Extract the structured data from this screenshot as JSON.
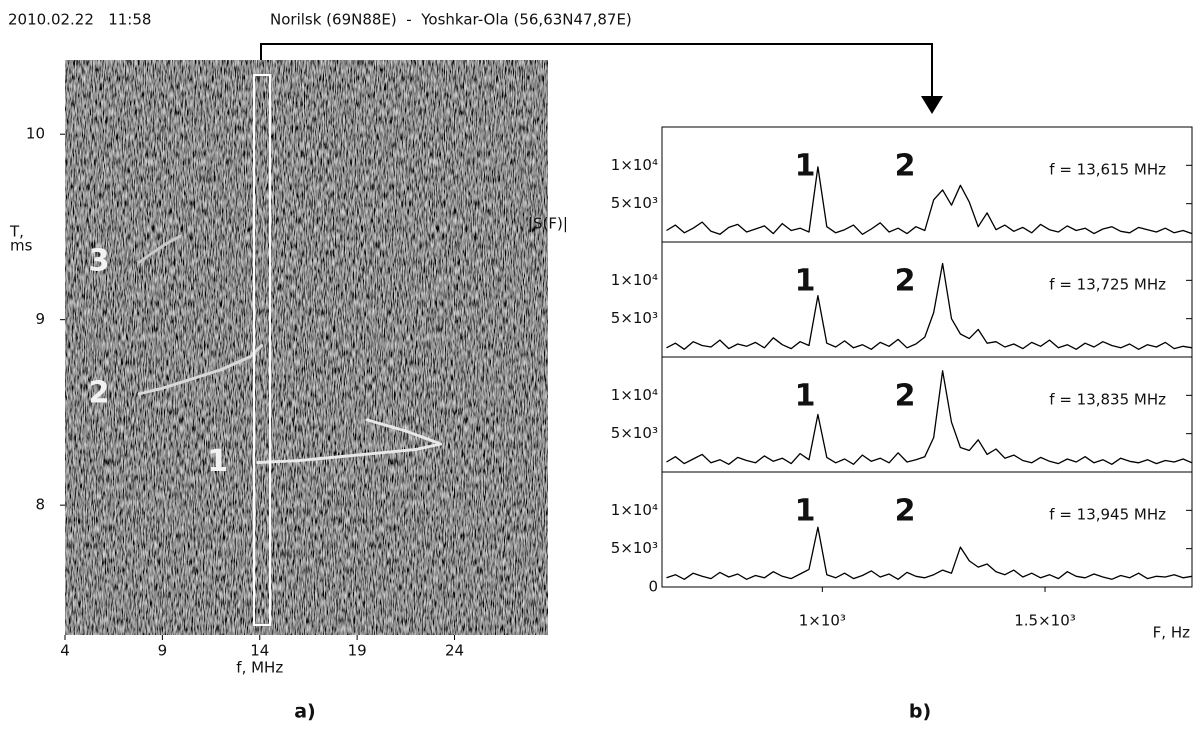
{
  "header": {
    "date": "2010.02.22   11:58",
    "path": "Norilsk (69N88E)  -  Yoshkar-Ola (56,63N47,87E)"
  },
  "captions": [
    "a)",
    "b)"
  ],
  "chart_data": [
    {
      "type": "ionogram",
      "xlabel": "f, MHz",
      "ylabel": [
        "T,",
        "ms"
      ],
      "xlim": [
        4,
        28.8
      ],
      "ylim": [
        7.3,
        10.4
      ],
      "xticks": [
        4,
        9,
        14,
        19,
        24
      ],
      "yticks": [
        8,
        9,
        10
      ],
      "series": [
        {
          "name": "1",
          "color": "#e8e8e8",
          "x": [
            13.9,
            16,
            18,
            20,
            22,
            23.3,
            21.5,
            19.5
          ],
          "values": [
            8.23,
            8.24,
            8.26,
            8.28,
            8.3,
            8.33,
            8.4,
            8.46
          ]
        },
        {
          "name": "2",
          "color": "#d8d8d8",
          "x": [
            7.8,
            9,
            10.5,
            12,
            13.5,
            14.1
          ],
          "values": [
            8.6,
            8.63,
            8.68,
            8.73,
            8.8,
            8.86
          ]
        },
        {
          "name": "3",
          "color": "#c8c8c8",
          "x": [
            7.8,
            8.5,
            9.2,
            9.9
          ],
          "values": [
            9.31,
            9.36,
            9.41,
            9.45
          ]
        }
      ]
    },
    {
      "type": "line",
      "ylabel": "|S(F)|",
      "labels": [
        "1",
        "2"
      ],
      "note": "f = 13,615 MHz",
      "xlim": [
        640,
        1830
      ],
      "ylim": [
        0,
        15000
      ],
      "yticks": [
        {
          "value": 5000,
          "label": "5×10³"
        },
        {
          "value": 10000,
          "label": "1×10⁴"
        }
      ],
      "x": [
        650,
        670,
        690,
        710,
        730,
        750,
        770,
        790,
        810,
        830,
        850,
        870,
        890,
        910,
        930,
        950,
        970,
        990,
        1010,
        1030,
        1050,
        1070,
        1090,
        1110,
        1130,
        1150,
        1170,
        1190,
        1210,
        1230,
        1250,
        1270,
        1290,
        1310,
        1330,
        1350,
        1370,
        1390,
        1410,
        1430,
        1450,
        1470,
        1490,
        1510,
        1530,
        1550,
        1570,
        1590,
        1610,
        1630,
        1650,
        1670,
        1690,
        1710,
        1730,
        1750,
        1770,
        1790,
        1810,
        1830
      ],
      "values": [
        1500,
        2200,
        1200,
        1800,
        2600,
        1400,
        1000,
        1900,
        2300,
        1300,
        1700,
        2100,
        1100,
        2400,
        1500,
        1800,
        1300,
        9800,
        2000,
        1200,
        1600,
        2200,
        1000,
        1700,
        2500,
        1300,
        1800,
        1100,
        2000,
        1500,
        5500,
        6800,
        4800,
        7400,
        5200,
        2000,
        3800,
        1600,
        2200,
        1400,
        1900,
        1200,
        2300,
        1600,
        1300,
        2100,
        1500,
        1800,
        1100,
        1700,
        2000,
        1400,
        1200,
        1900,
        1600,
        1300,
        1800,
        1200,
        1500,
        1100
      ]
    },
    {
      "type": "line",
      "labels": [
        "1",
        "2"
      ],
      "note": "f = 13,725 MHz",
      "xlim": [
        640,
        1830
      ],
      "ylim": [
        0,
        15000
      ],
      "yticks": [
        {
          "value": 5000,
          "label": "5×10³"
        },
        {
          "value": 10000,
          "label": "1×10⁴"
        }
      ],
      "x": [
        650,
        670,
        690,
        710,
        730,
        750,
        770,
        790,
        810,
        830,
        850,
        870,
        890,
        910,
        930,
        950,
        970,
        990,
        1010,
        1030,
        1050,
        1070,
        1090,
        1110,
        1130,
        1150,
        1170,
        1190,
        1210,
        1230,
        1250,
        1270,
        1290,
        1310,
        1330,
        1350,
        1370,
        1390,
        1410,
        1430,
        1450,
        1470,
        1490,
        1510,
        1530,
        1550,
        1570,
        1590,
        1610,
        1630,
        1650,
        1670,
        1690,
        1710,
        1730,
        1750,
        1770,
        1790,
        1810,
        1830
      ],
      "values": [
        1200,
        1800,
        1000,
        2000,
        1500,
        1300,
        2200,
        1100,
        1700,
        1400,
        1900,
        1200,
        2500,
        1600,
        1100,
        2000,
        1500,
        8000,
        1800,
        1300,
        2100,
        1200,
        1600,
        1000,
        1900,
        1400,
        2300,
        1200,
        1700,
        2600,
        5800,
        12200,
        5000,
        3000,
        2400,
        3600,
        1800,
        2000,
        1300,
        1700,
        1100,
        1900,
        1400,
        2200,
        1200,
        1600,
        1000,
        1800,
        1300,
        2000,
        1500,
        1200,
        1700,
        1000,
        1600,
        1300,
        1900,
        1100,
        1400,
        1200
      ]
    },
    {
      "type": "line",
      "labels": [
        "1",
        "2"
      ],
      "note": "f = 13,835 MHz",
      "xlim": [
        640,
        1830
      ],
      "ylim": [
        0,
        15000
      ],
      "yticks": [
        {
          "value": 5000,
          "label": "5×10³"
        },
        {
          "value": 10000,
          "label": "1×10⁴"
        }
      ],
      "x": [
        650,
        670,
        690,
        710,
        730,
        750,
        770,
        790,
        810,
        830,
        850,
        870,
        890,
        910,
        930,
        950,
        970,
        990,
        1010,
        1030,
        1050,
        1070,
        1090,
        1110,
        1130,
        1150,
        1170,
        1190,
        1210,
        1230,
        1250,
        1270,
        1290,
        1310,
        1330,
        1350,
        1370,
        1390,
        1410,
        1430,
        1450,
        1470,
        1490,
        1510,
        1530,
        1550,
        1570,
        1590,
        1610,
        1630,
        1650,
        1670,
        1690,
        1710,
        1730,
        1750,
        1770,
        1790,
        1810,
        1830
      ],
      "values": [
        1300,
        2000,
        1100,
        1700,
        2300,
        1200,
        1600,
        1000,
        1900,
        1500,
        1200,
        2100,
        1400,
        1800,
        1100,
        2400,
        1600,
        7500,
        1900,
        1200,
        1700,
        1000,
        2200,
        1400,
        1800,
        1200,
        2500,
        1300,
        1600,
        2000,
        4500,
        13200,
        6500,
        3200,
        2800,
        4200,
        2300,
        3000,
        1800,
        2200,
        1500,
        1200,
        1900,
        1400,
        1100,
        1700,
        1300,
        2000,
        1200,
        1600,
        1000,
        1800,
        1400,
        1200,
        1600,
        1100,
        1500,
        1300,
        1700,
        1200
      ]
    },
    {
      "type": "line",
      "labels": [
        "1",
        "2"
      ],
      "note": "f = 13,945 MHz",
      "xlabel": "F, Hz",
      "xlim": [
        640,
        1830
      ],
      "ylim": [
        0,
        15000
      ],
      "yticks": [
        0,
        {
          "value": 5000,
          "label": "5×10³"
        },
        {
          "value": 10000,
          "label": "1×10⁴"
        }
      ],
      "xticks": [
        {
          "value": 1000,
          "label": "1×10³"
        },
        {
          "value": 1500,
          "label": "1.5×10³"
        }
      ],
      "x": [
        650,
        670,
        690,
        710,
        730,
        750,
        770,
        790,
        810,
        830,
        850,
        870,
        890,
        910,
        930,
        950,
        970,
        990,
        1010,
        1030,
        1050,
        1070,
        1090,
        1110,
        1130,
        1150,
        1170,
        1190,
        1210,
        1230,
        1250,
        1270,
        1290,
        1310,
        1330,
        1350,
        1370,
        1390,
        1410,
        1430,
        1450,
        1470,
        1490,
        1510,
        1530,
        1550,
        1570,
        1590,
        1610,
        1630,
        1650,
        1670,
        1690,
        1710,
        1730,
        1750,
        1770,
        1790,
        1810,
        1830
      ],
      "values": [
        1200,
        1600,
        1000,
        1800,
        1400,
        1100,
        1900,
        1300,
        1700,
        1000,
        1500,
        1200,
        2000,
        1400,
        1100,
        1700,
        2300,
        7800,
        1600,
        1200,
        1800,
        1100,
        1500,
        2100,
        1300,
        1700,
        1000,
        1900,
        1400,
        1200,
        1600,
        2200,
        1800,
        5200,
        3400,
        2600,
        3000,
        2000,
        1600,
        2200,
        1300,
        1800,
        1200,
        1600,
        1100,
        2000,
        1400,
        1200,
        1700,
        1300,
        1000,
        1500,
        1200,
        1800,
        1100,
        1400,
        1300,
        1600,
        1200,
        1400
      ]
    }
  ]
}
